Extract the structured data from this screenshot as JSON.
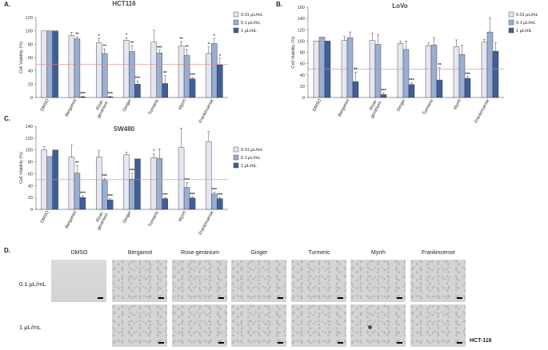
{
  "chart_data": [
    {
      "type": "bar",
      "panel": "A.",
      "title": "HCT116",
      "ylabel": "Cell Viability (%)",
      "ylim": [
        0,
        120
      ],
      "yticks": [
        0,
        20,
        40,
        60,
        80,
        100,
        120
      ],
      "reference_line": 50,
      "categories": [
        "DMSO",
        "Bergamot",
        "Rose-\ngeranium",
        "Ginger",
        "Turmeric",
        "Myrrh",
        "Frankincense"
      ],
      "series": [
        {
          "name": "0.01 μL/mL",
          "values": [
            100,
            93,
            82,
            86,
            83,
            77,
            66
          ],
          "errors": [
            0,
            5,
            7,
            4,
            18,
            7,
            10
          ],
          "sig": [
            "",
            "",
            "*",
            "*",
            "",
            "**",
            "*"
          ]
        },
        {
          "name": "0.1 μL/mL",
          "values": [
            100,
            88,
            66,
            69,
            67,
            63,
            81
          ],
          "errors": [
            0,
            3,
            7,
            9,
            4,
            9,
            8
          ],
          "sig": [
            "",
            "**",
            "**",
            "**",
            "***",
            "**",
            "*"
          ]
        },
        {
          "name": "1 μL/mL",
          "values": [
            100,
            1,
            1,
            20,
            21,
            28,
            49
          ],
          "errors": [
            0,
            1,
            1,
            5,
            12,
            2,
            10
          ],
          "sig": [
            "",
            "***",
            "***",
            "***",
            "**",
            "***",
            "*"
          ]
        }
      ]
    },
    {
      "type": "bar",
      "panel": "B.",
      "title": "LoVo",
      "ylabel": "Cell Viability (%)",
      "ylim": [
        0,
        160
      ],
      "yticks": [
        0,
        20,
        40,
        60,
        80,
        100,
        120,
        140,
        160
      ],
      "reference_line": 50,
      "categories": [
        "DMSO",
        "Bergamot",
        "Rose-\ngeranium",
        "Ginger",
        "Turmeric",
        "Myrrh",
        "Frankincense"
      ],
      "series": [
        {
          "name": "0.01 μL/mL",
          "values": [
            100,
            101,
            101,
            96,
            92,
            90,
            98
          ],
          "errors": [
            0,
            7,
            13,
            4,
            5,
            12,
            5
          ],
          "sig": [
            "",
            "",
            "",
            "",
            "",
            "",
            ""
          ]
        },
        {
          "name": "0.1 μL/mL",
          "values": [
            107,
            106,
            94,
            85,
            93,
            76,
            116
          ],
          "errors": [
            0,
            10,
            17,
            15,
            13,
            17,
            25
          ],
          "sig": [
            "",
            "",
            "",
            "",
            "",
            "",
            ""
          ]
        },
        {
          "name": "1 μL/mL",
          "values": [
            100,
            28,
            5,
            23,
            31,
            34,
            82
          ],
          "errors": [
            0,
            17,
            3,
            3,
            22,
            3,
            15
          ],
          "sig": [
            "",
            "**",
            "***",
            "***",
            "**",
            "***",
            ""
          ]
        }
      ]
    },
    {
      "type": "bar",
      "panel": "C.",
      "title": "SW480",
      "ylabel": "Cell Viability (%)",
      "ylim": [
        0,
        140
      ],
      "yticks": [
        0,
        20,
        40,
        60,
        80,
        100,
        120,
        140
      ],
      "reference_line": 50,
      "categories": [
        "DMSO",
        "Bergamot",
        "Rose-\ngeranium",
        "Ginger",
        "Turmeric",
        "Myrrh",
        "Frankincense"
      ],
      "series": [
        {
          "name": "0.01 μL/mL",
          "values": [
            100,
            88,
            88,
            92,
            87,
            104,
            114
          ],
          "errors": [
            6,
            20,
            11,
            4,
            7,
            33,
            17
          ],
          "sig": [
            "",
            "",
            "",
            "",
            "*",
            "",
            ""
          ]
        },
        {
          "name": "0.1 μL/mL",
          "values": [
            89,
            61,
            49,
            51,
            86,
            37,
            26
          ],
          "errors": [
            0,
            13,
            3,
            10,
            16,
            8,
            3
          ],
          "sig": [
            "",
            "**",
            "***",
            "***",
            "",
            "***",
            "***"
          ]
        },
        {
          "name": "1 μL/mL",
          "values": [
            100,
            20,
            16,
            85,
            18,
            19,
            18
          ],
          "errors": [
            0,
            3,
            2,
            0,
            2,
            2,
            2
          ],
          "sig": [
            "",
            "***",
            "***",
            "",
            "***",
            "***",
            "***"
          ]
        }
      ]
    }
  ],
  "colors": {
    "s0": "#e4e7f2",
    "s1": "#9aaed2",
    "s2": "#3f5f9c",
    "edge": "#2b2b2b",
    "ref": "#d88a8a"
  },
  "panel_d": {
    "label": "D.",
    "columns": [
      "DMSO",
      "Bergamot",
      "Rose-geranium",
      "Ginger",
      "Turmeric",
      "Myrrh",
      "Frankincense"
    ],
    "rows": [
      "0.1 μL/mL",
      "1 μL/mL"
    ],
    "cell_line": "HCT-116"
  }
}
